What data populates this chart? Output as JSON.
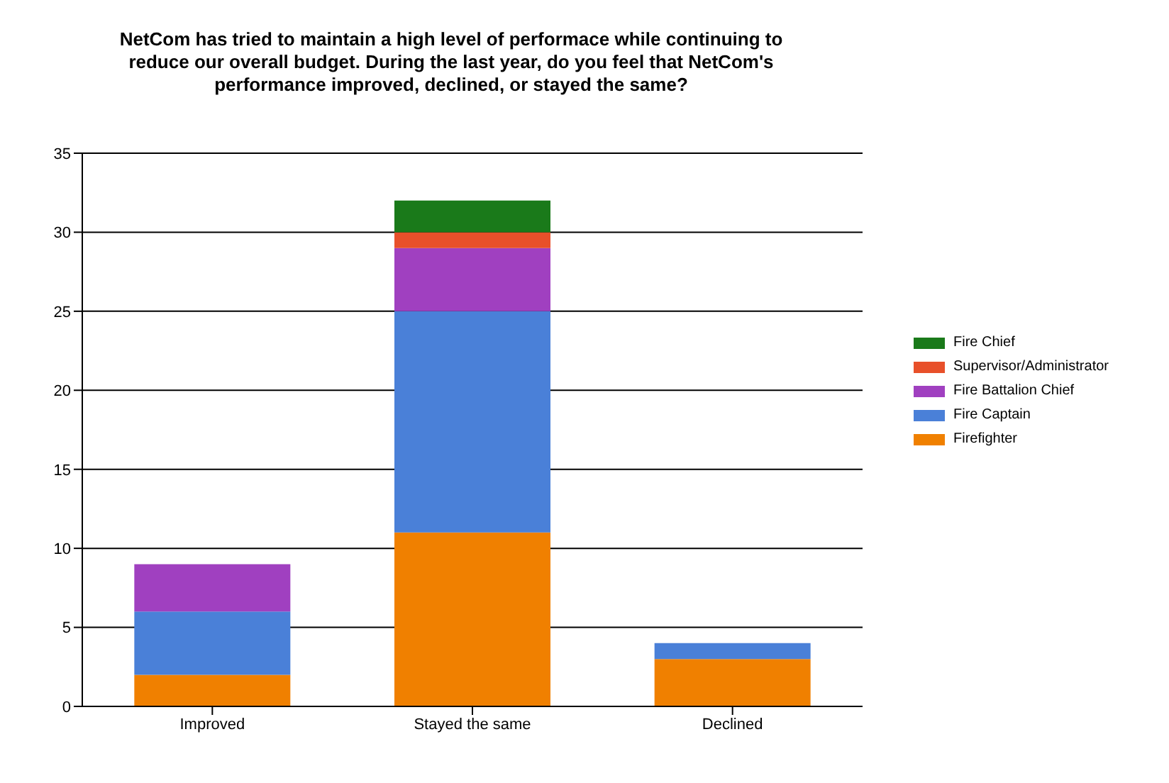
{
  "chart_data": {
    "type": "bar",
    "stacked": true,
    "title": "NetCom has tried to maintain a high level of performace while continuing to reduce our overall budget.  During the last year, do you feel that NetCom's performance improved, declined, or stayed the same?",
    "categories": [
      "Improved",
      "Stayed the same",
      "Declined"
    ],
    "series": [
      {
        "name": "Firefighter",
        "color": "#f08000",
        "values": [
          2,
          11,
          3
        ]
      },
      {
        "name": "Fire Captain",
        "color": "#4a80d8",
        "values": [
          4,
          14,
          1
        ]
      },
      {
        "name": "Fire Battalion Chief",
        "color": "#a040c0",
        "values": [
          3,
          4,
          0
        ]
      },
      {
        "name": "Supervisor/Administrator",
        "color": "#e8502a",
        "values": [
          0,
          1,
          0
        ]
      },
      {
        "name": "Fire Chief",
        "color": "#1a7a1a",
        "values": [
          0,
          2,
          0
        ]
      }
    ],
    "ylim": [
      0,
      35
    ],
    "yticks": [
      0,
      5,
      10,
      15,
      20,
      25,
      30,
      35
    ],
    "grid": "y",
    "legend": "right"
  }
}
